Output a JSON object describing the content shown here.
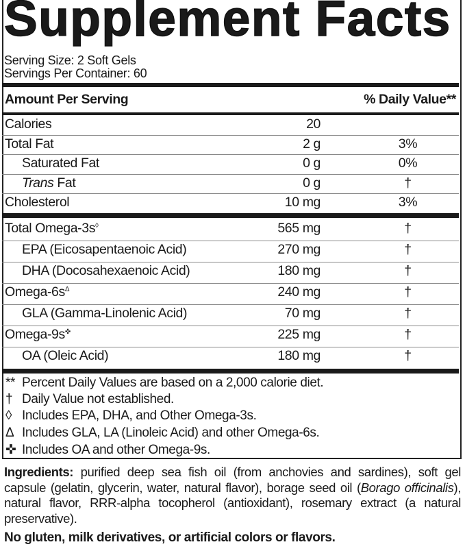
{
  "title": "Supplement Facts",
  "serving_size": "Serving Size: 2 Soft Gels",
  "servings_per_container": "Servings Per Container: 60",
  "header": {
    "amount": "Amount Per Serving",
    "dv": "% Daily Value**"
  },
  "rows1": [
    {
      "name": "Calories",
      "amount": "20",
      "dv": ""
    },
    {
      "name": "Total Fat",
      "amount": "2 g",
      "dv": "3%"
    },
    {
      "name": "Saturated Fat",
      "amount": "0 g",
      "dv": "0%",
      "indent": true
    },
    {
      "name_italic": "Trans",
      "name": " Fat",
      "amount": "0 g",
      "dv": "†",
      "indent": true
    },
    {
      "name": "Cholesterol",
      "amount": "10 mg",
      "dv": "3%"
    }
  ],
  "rows2": [
    {
      "name": "Total Omega-3s",
      "sup": "◊",
      "amount": "565 mg",
      "dv": "†"
    },
    {
      "name": "EPA (Eicosapentaenoic Acid)",
      "amount": "270 mg",
      "dv": "†",
      "indent": true
    },
    {
      "name": "DHA (Docosahexaenoic Acid)",
      "amount": "180 mg",
      "dv": "†",
      "indent": true
    },
    {
      "name": "Omega-6s",
      "sup": "Δ",
      "amount": "240 mg",
      "dv": "†"
    },
    {
      "name": "GLA (Gamma-Linolenic Acid)",
      "amount": "70 mg",
      "dv": "†",
      "indent": true
    },
    {
      "name": "Omega-9s",
      "sup": "✜",
      "amount": "225 mg",
      "dv": "†"
    },
    {
      "name": "OA (Oleic Acid)",
      "amount": "180 mg",
      "dv": "†",
      "indent": true
    }
  ],
  "footnotes": [
    {
      "symbol": "**",
      "text": "Percent Daily Values are based on a 2,000 calorie diet."
    },
    {
      "symbol": "†",
      "text": "Daily Value not established."
    },
    {
      "symbol": "◊",
      "text": "Includes EPA, DHA, and Other Omega-3s."
    },
    {
      "symbol": "Δ",
      "text": "Includes GLA, LA (Linoleic Acid) and other Omega-6s."
    },
    {
      "symbol": "✜",
      "text": "Includes OA and other Omega-9s."
    }
  ],
  "ingredients": {
    "label": "Ingredients:",
    "text1": " purified deep sea fish oil (from anchovies and sardines), soft gel capsule (gelatin, glycerin, water, natural flavor), borage seed oil (",
    "italic": "Borago officinalis",
    "text2": "), natural flavor, RRR-alpha tocopherol (antioxidant), rosemary extract (a natural preservative)."
  },
  "free_from": "No gluten, milk derivatives, or artificial colors or flavors."
}
